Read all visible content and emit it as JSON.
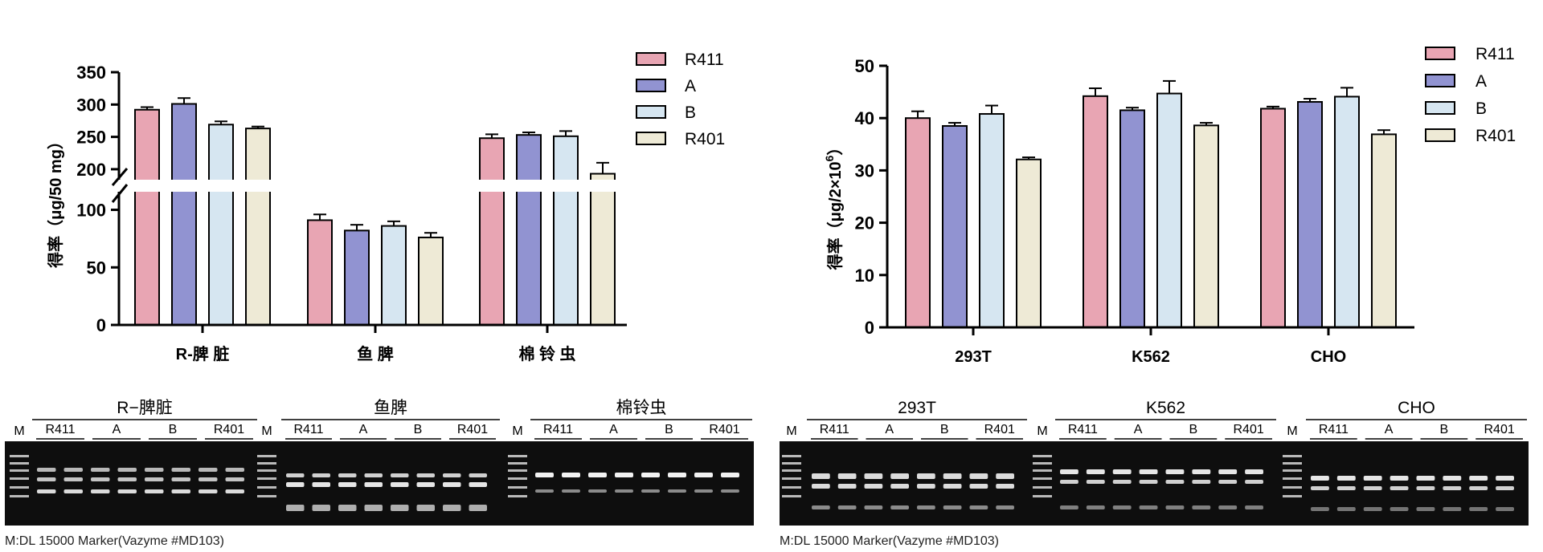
{
  "colors": {
    "R411": "#e8a5b3",
    "A": "#9193d1",
    "B": "#d6e6f1",
    "R401": "#eeead6",
    "axis": "#000000",
    "gel": "#0e0e0e"
  },
  "chart_data": [
    {
      "type": "bar",
      "categories": [
        "R-脾 脏",
        "鱼 脾",
        "棉 铃 虫"
      ],
      "series": [
        {
          "name": "R411",
          "values": [
            292,
            91,
            248
          ],
          "errors": [
            4,
            5,
            6
          ]
        },
        {
          "name": "A",
          "values": [
            301,
            82,
            253
          ],
          "errors": [
            9,
            5,
            4
          ]
        },
        {
          "name": "B",
          "values": [
            269,
            86,
            251
          ],
          "errors": [
            5,
            4,
            8
          ]
        },
        {
          "name": "R401",
          "values": [
            263,
            76,
            193
          ],
          "errors": [
            3,
            4,
            17
          ]
        }
      ],
      "ylabel": "得率（μg/50 mg）",
      "yticks": [
        "350",
        "300",
        "250",
        "200",
        "100",
        "50",
        "0"
      ],
      "axis_break": [
        115,
        185
      ],
      "ylim": [
        0,
        350
      ],
      "legend": [
        "R411",
        "A",
        "B",
        "R401"
      ],
      "legend_position": "top-right"
    },
    {
      "type": "bar",
      "categories": [
        "293T",
        "K562",
        "CHO"
      ],
      "series": [
        {
          "name": "R411",
          "values": [
            40.0,
            44.2,
            41.8
          ],
          "errors": [
            1.3,
            1.5,
            0.4
          ]
        },
        {
          "name": "A",
          "values": [
            38.5,
            41.5,
            43.1
          ],
          "errors": [
            0.6,
            0.5,
            0.6
          ]
        },
        {
          "name": "B",
          "values": [
            40.8,
            44.7,
            44.1
          ],
          "errors": [
            1.6,
            2.4,
            1.7
          ]
        },
        {
          "name": "R401",
          "values": [
            32.1,
            38.6,
            36.9
          ],
          "errors": [
            0.4,
            0.5,
            0.8
          ]
        }
      ],
      "ylabel": "得率（μg/2×10",
      "ylabel_sup": "6",
      "ylabel_end": "）",
      "yticks": [
        "50",
        "40",
        "30",
        "20",
        "10",
        "0"
      ],
      "ylim": [
        0,
        50
      ],
      "legend": [
        "R411",
        "A",
        "B",
        "R401"
      ],
      "legend_position": "top-right"
    }
  ],
  "gels": [
    {
      "groups": [
        {
          "title": "R−脾脏",
          "lanes": [
            "R411",
            "A",
            "B",
            "R401"
          ]
        },
        {
          "title": "鱼脾",
          "lanes": [
            "R411",
            "A",
            "B",
            "R401"
          ]
        },
        {
          "title": "棉铃虫",
          "lanes": [
            "R411",
            "A",
            "B",
            "R401"
          ]
        }
      ],
      "marker_label": "M",
      "note": "M:DL 15000 Marker(Vazyme #MD103)"
    },
    {
      "groups": [
        {
          "title": "293T",
          "lanes": [
            "R411",
            "A",
            "B",
            "R401"
          ]
        },
        {
          "title": "K562",
          "lanes": [
            "R411",
            "A",
            "B",
            "R401"
          ]
        },
        {
          "title": "CHO",
          "lanes": [
            "R411",
            "A",
            "B",
            "R401"
          ]
        }
      ],
      "marker_label": "M",
      "note": "M:DL 15000 Marker(Vazyme #MD103)"
    }
  ]
}
